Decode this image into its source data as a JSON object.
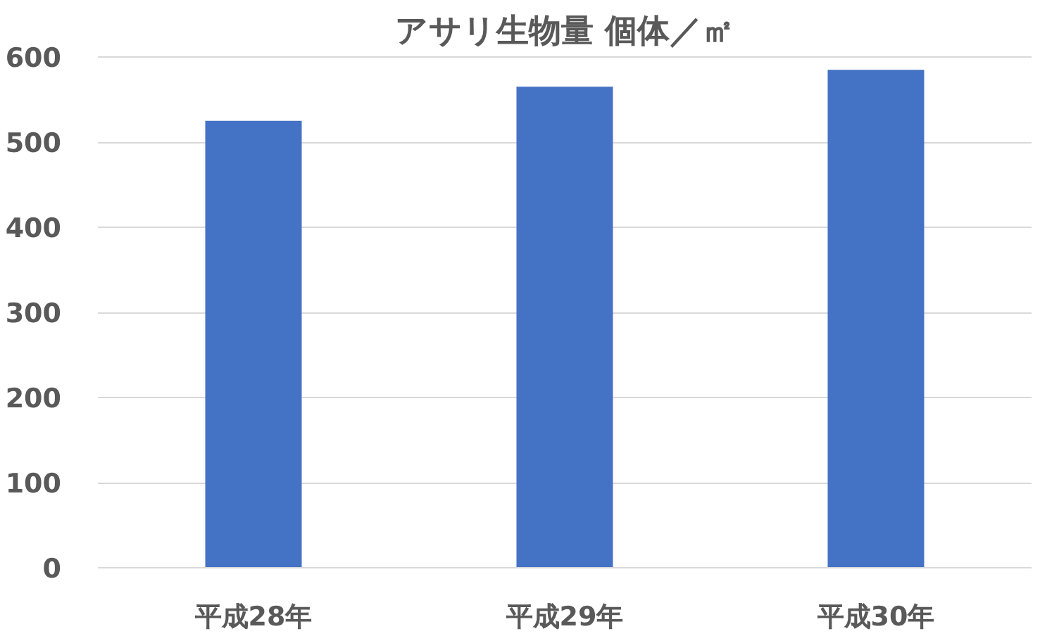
{
  "chart_data": {
    "type": "bar",
    "title": "アサリ生物量 個体／㎡",
    "categories": [
      "平成28年",
      "平成29年",
      "平成30年"
    ],
    "values": [
      525,
      565,
      585
    ],
    "color": "#4472c4",
    "ylim": [
      0,
      600
    ],
    "yticks": [
      0,
      100,
      200,
      300,
      400,
      500,
      600
    ],
    "grid": "y"
  }
}
